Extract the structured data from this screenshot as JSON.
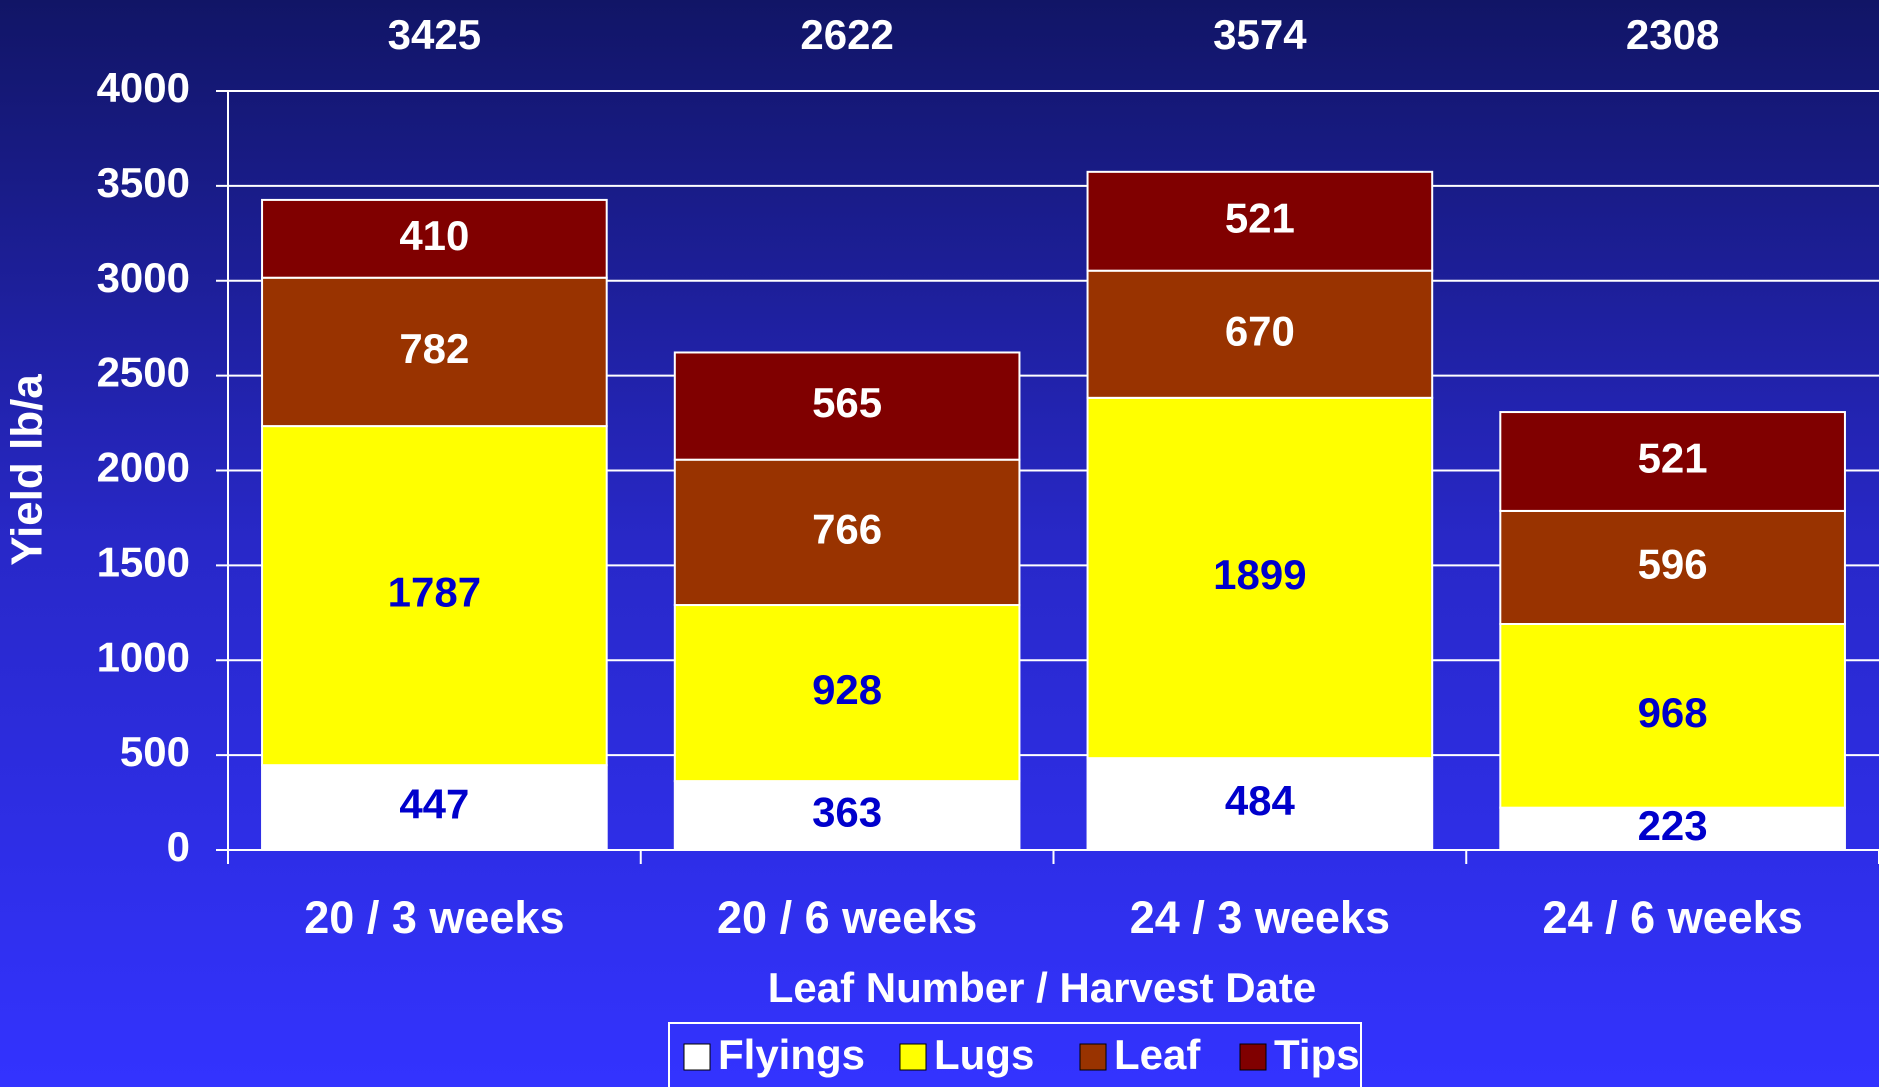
{
  "chart_data": {
    "type": "stacked_bar",
    "x_label": "Leaf Number / Harvest Date",
    "y_label": "Yield lb/a",
    "categories": [
      "20 / 3 weeks",
      "20 / 6 weeks",
      "24 / 3 weeks",
      "24 / 6 weeks"
    ],
    "series": [
      {
        "name": "Flyings",
        "color": "#ffffff",
        "label_color": "#0000cc",
        "values": [
          447,
          363,
          484,
          223
        ]
      },
      {
        "name": "Lugs",
        "color": "#ffff00",
        "label_color": "#0000cc",
        "values": [
          1787,
          928,
          1899,
          968
        ]
      },
      {
        "name": "Leaf",
        "color": "#993300",
        "label_color": "#ffffff",
        "values": [
          782,
          766,
          670,
          596
        ]
      },
      {
        "name": "Tips",
        "color": "#800000",
        "label_color": "#ffffff",
        "values": [
          410,
          565,
          521,
          521
        ]
      }
    ],
    "totals": [
      3425,
      2622,
      3574,
      2308
    ],
    "ylim": [
      0,
      4000
    ],
    "yticks": [
      0,
      500,
      1000,
      1500,
      2000,
      2500,
      3000,
      3500,
      4000
    ],
    "grid": true,
    "legend": "bottom"
  }
}
